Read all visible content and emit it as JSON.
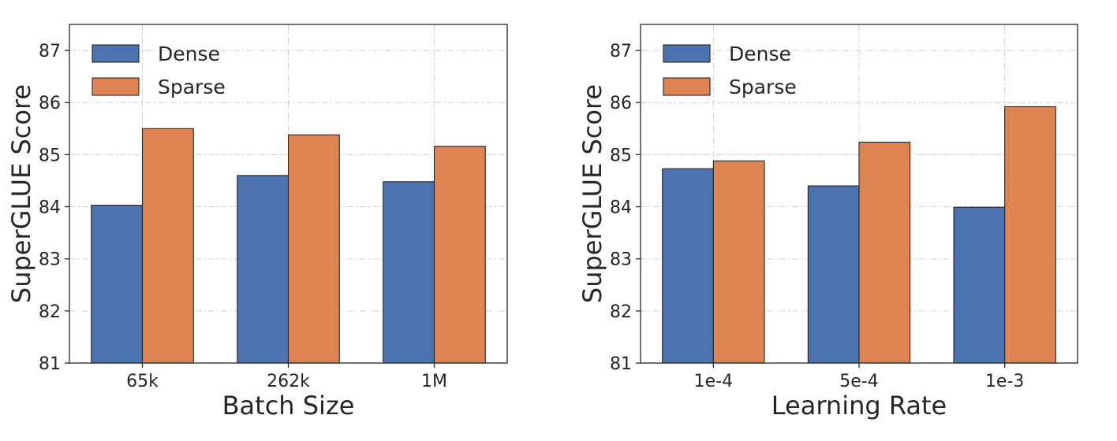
{
  "colors": {
    "dense": "#4C72B0",
    "sparse": "#DD8452"
  },
  "chart_data": [
    {
      "type": "bar",
      "xlabel": "Batch Size",
      "ylabel": "SuperGLUE Score",
      "categories": [
        "65k",
        "262k",
        "1M"
      ],
      "series": [
        {
          "name": "Dense",
          "values": [
            84.03,
            84.6,
            84.48
          ]
        },
        {
          "name": "Sparse",
          "values": [
            85.5,
            85.38,
            85.16
          ]
        }
      ],
      "ylim": [
        81,
        87.5
      ],
      "yticks": [
        81,
        82,
        83,
        84,
        85,
        86,
        87
      ],
      "grid": true,
      "legend": "top-left"
    },
    {
      "type": "bar",
      "xlabel": "Learning Rate",
      "ylabel": "SuperGLUE Score",
      "categories": [
        "1e-4",
        "5e-4",
        "1e-3"
      ],
      "series": [
        {
          "name": "Dense",
          "values": [
            84.73,
            84.4,
            83.99
          ]
        },
        {
          "name": "Sparse",
          "values": [
            84.88,
            85.24,
            85.92
          ]
        }
      ],
      "ylim": [
        81,
        87.5
      ],
      "yticks": [
        81,
        82,
        83,
        84,
        85,
        86,
        87
      ],
      "grid": true,
      "legend": "top-left"
    }
  ]
}
